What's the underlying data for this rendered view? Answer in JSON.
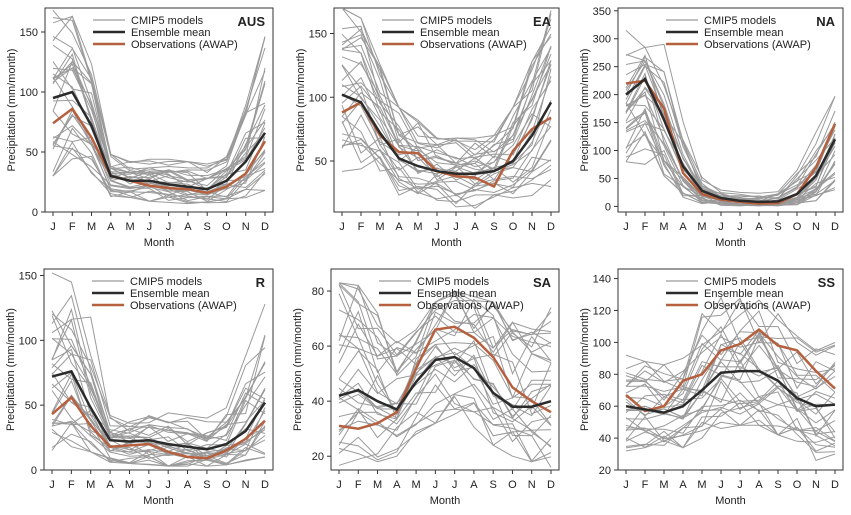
{
  "legend": {
    "models": "CMIP5 models",
    "ensemble": "Ensemble mean",
    "obs": "Observations (AWAP)"
  },
  "colors": {
    "models": "#9a9a9a",
    "ensemble": "#2b2b2b",
    "obs": "#b5603e"
  },
  "chart_data": [
    {
      "type": "line",
      "region": "AUS",
      "xlabel": "Month",
      "ylabel": "Precipitation (mm/month)",
      "categories": [
        "J",
        "F",
        "M",
        "A",
        "M",
        "J",
        "J",
        "A",
        "S",
        "O",
        "N",
        "D"
      ],
      "ylim": [
        0,
        170
      ],
      "yticks": [
        0,
        50,
        100,
        150
      ],
      "ensemble": [
        95,
        100,
        72,
        30,
        26,
        26,
        23,
        21,
        19,
        26,
        42,
        66
      ],
      "obs": [
        74,
        86,
        62,
        30,
        26,
        22,
        20,
        19,
        16,
        21,
        32,
        59
      ],
      "model_count": 30,
      "model_min": [
        30,
        35,
        30,
        12,
        10,
        9,
        8,
        7,
        6,
        8,
        12,
        18
      ],
      "model_max": [
        168,
        163,
        126,
        48,
        42,
        44,
        44,
        42,
        40,
        46,
        92,
        146
      ]
    },
    {
      "type": "line",
      "region": "EA",
      "xlabel": "Month",
      "ylabel": "Precipitation (mm/month)",
      "categories": [
        "J",
        "F",
        "M",
        "A",
        "M",
        "J",
        "J",
        "A",
        "S",
        "O",
        "N",
        "D"
      ],
      "ylim": [
        10,
        170
      ],
      "yticks": [
        50,
        100,
        150
      ],
      "ensemble": [
        102,
        96,
        72,
        52,
        46,
        42,
        40,
        40,
        42,
        50,
        70,
        96
      ],
      "obs": [
        88,
        96,
        70,
        57,
        56,
        42,
        38,
        37,
        30,
        58,
        75,
        84
      ],
      "model_count": 30,
      "model_min": [
        35,
        30,
        26,
        20,
        16,
        16,
        14,
        12,
        12,
        18,
        22,
        30
      ],
      "model_max": [
        170,
        162,
        132,
        92,
        82,
        68,
        68,
        68,
        70,
        92,
        128,
        168
      ]
    },
    {
      "type": "line",
      "region": "NA",
      "xlabel": "Month",
      "ylabel": "Precipitation (mm/month)",
      "categories": [
        "J",
        "F",
        "M",
        "A",
        "M",
        "J",
        "J",
        "A",
        "S",
        "O",
        "N",
        "D"
      ],
      "ylim": [
        -10,
        355
      ],
      "yticks": [
        0,
        50,
        100,
        150,
        200,
        250,
        300,
        350
      ],
      "ensemble": [
        200,
        228,
        155,
        72,
        28,
        15,
        10,
        8,
        9,
        22,
        55,
        120
      ],
      "obs": [
        220,
        225,
        175,
        60,
        22,
        12,
        8,
        5,
        6,
        22,
        70,
        148
      ],
      "model_count": 30,
      "model_min": [
        80,
        70,
        55,
        15,
        5,
        2,
        1,
        1,
        1,
        3,
        10,
        30
      ],
      "model_max": [
        315,
        320,
        290,
        152,
        58,
        30,
        25,
        24,
        30,
        70,
        140,
        240
      ]
    },
    {
      "type": "line",
      "region": "R",
      "xlabel": "Month",
      "ylabel": "Precipitation (mm/month)",
      "categories": [
        "J",
        "F",
        "M",
        "A",
        "M",
        "J",
        "J",
        "A",
        "S",
        "O",
        "N",
        "D"
      ],
      "ylim": [
        0,
        155
      ],
      "yticks": [
        0,
        50,
        100,
        150
      ],
      "ensemble": [
        72,
        76,
        48,
        23,
        22,
        23,
        20,
        18,
        16,
        20,
        30,
        52
      ],
      "obs": [
        43,
        56,
        34,
        18,
        19,
        20,
        14,
        10,
        9,
        15,
        24,
        38
      ],
      "model_count": 30,
      "model_min": [
        15,
        18,
        14,
        6,
        5,
        4,
        3,
        3,
        3,
        4,
        6,
        10
      ],
      "model_max": [
        152,
        145,
        118,
        42,
        40,
        42,
        44,
        42,
        40,
        48,
        88,
        128
      ]
    },
    {
      "type": "line",
      "region": "SA",
      "xlabel": "Month",
      "ylabel": "Precipitation (mm/month)",
      "categories": [
        "J",
        "F",
        "M",
        "A",
        "M",
        "J",
        "J",
        "A",
        "S",
        "O",
        "N",
        "D"
      ],
      "ylim": [
        15,
        88
      ],
      "yticks": [
        20,
        40,
        60,
        80
      ],
      "ensemble": [
        42,
        44,
        40,
        37,
        47,
        55,
        56,
        52,
        43,
        38,
        38,
        40
      ],
      "obs": [
        31,
        30,
        32,
        36,
        52,
        66,
        67,
        63,
        56,
        45,
        40,
        36
      ],
      "model_count": 30,
      "model_min": [
        16,
        18,
        18,
        20,
        28,
        32,
        34,
        30,
        24,
        20,
        18,
        16
      ],
      "model_max": [
        83,
        82,
        72,
        62,
        66,
        76,
        80,
        78,
        76,
        72,
        70,
        74
      ]
    },
    {
      "type": "line",
      "region": "SS",
      "xlabel": "Month",
      "ylabel": "Precipitation (mm/month)",
      "categories": [
        "J",
        "F",
        "M",
        "A",
        "M",
        "J",
        "J",
        "A",
        "S",
        "O",
        "N",
        "D"
      ],
      "ylim": [
        20,
        146
      ],
      "yticks": [
        20,
        40,
        60,
        80,
        100,
        120,
        140
      ],
      "ensemble": [
        60,
        58,
        56,
        60,
        70,
        81,
        82,
        82,
        76,
        65,
        60,
        61
      ],
      "obs": [
        67,
        57,
        60,
        76,
        80,
        95,
        99,
        108,
        98,
        95,
        82,
        71
      ],
      "model_count": 30,
      "model_min": [
        32,
        34,
        32,
        34,
        40,
        46,
        48,
        48,
        42,
        38,
        26,
        30
      ],
      "model_max": [
        92,
        88,
        86,
        90,
        118,
        128,
        132,
        130,
        118,
        104,
        96,
        100
      ]
    }
  ]
}
